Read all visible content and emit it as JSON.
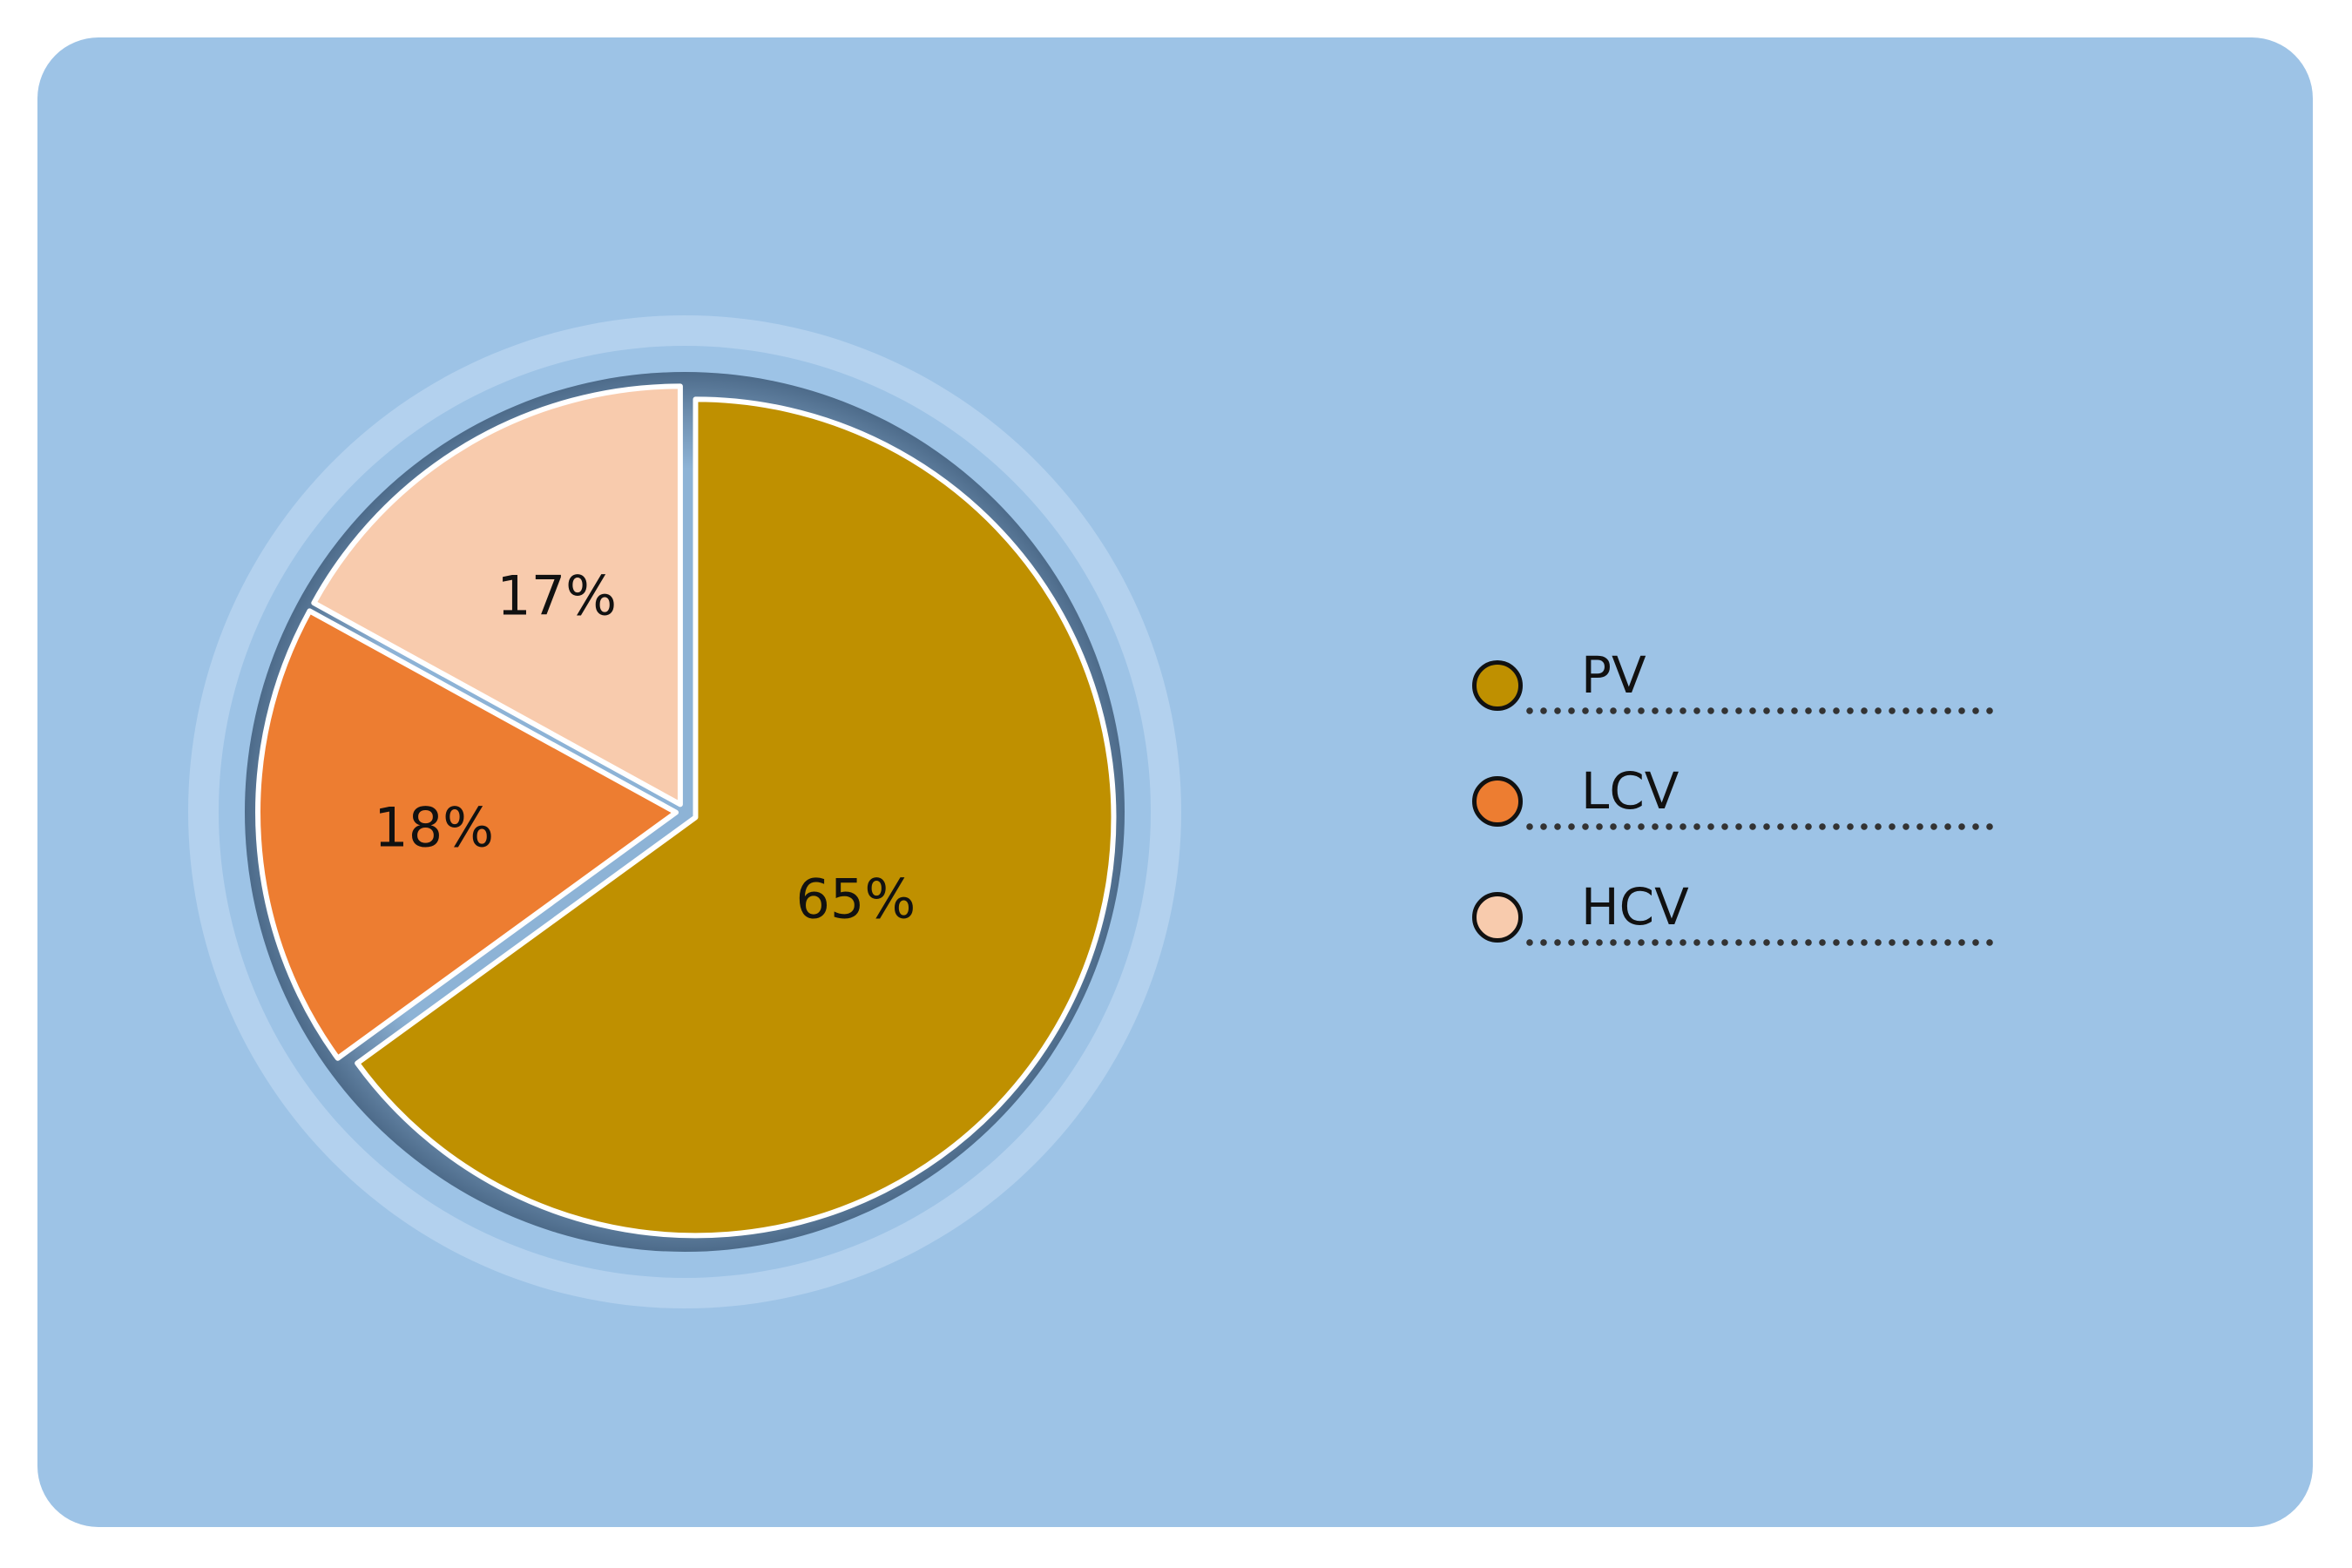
{
  "chart_data": {
    "type": "pie",
    "categories": [
      "PV",
      "LCV",
      "HCV"
    ],
    "values": [
      65,
      18,
      17
    ],
    "value_labels": [
      "65%",
      "18%",
      "17%"
    ],
    "colors": [
      "#bf9000",
      "#ed7d31",
      "#f8cbad"
    ],
    "start_angle_deg": 0,
    "direction": "clockwise",
    "exploded": true,
    "legend": {
      "position": "right",
      "items": [
        {
          "label": "PV",
          "color": "#bf9000"
        },
        {
          "label": "LCV",
          "color": "#ed7d31"
        },
        {
          "label": "HCV",
          "color": "#f8cbad"
        }
      ]
    },
    "title": "",
    "background_color": "#9dc3e6"
  }
}
